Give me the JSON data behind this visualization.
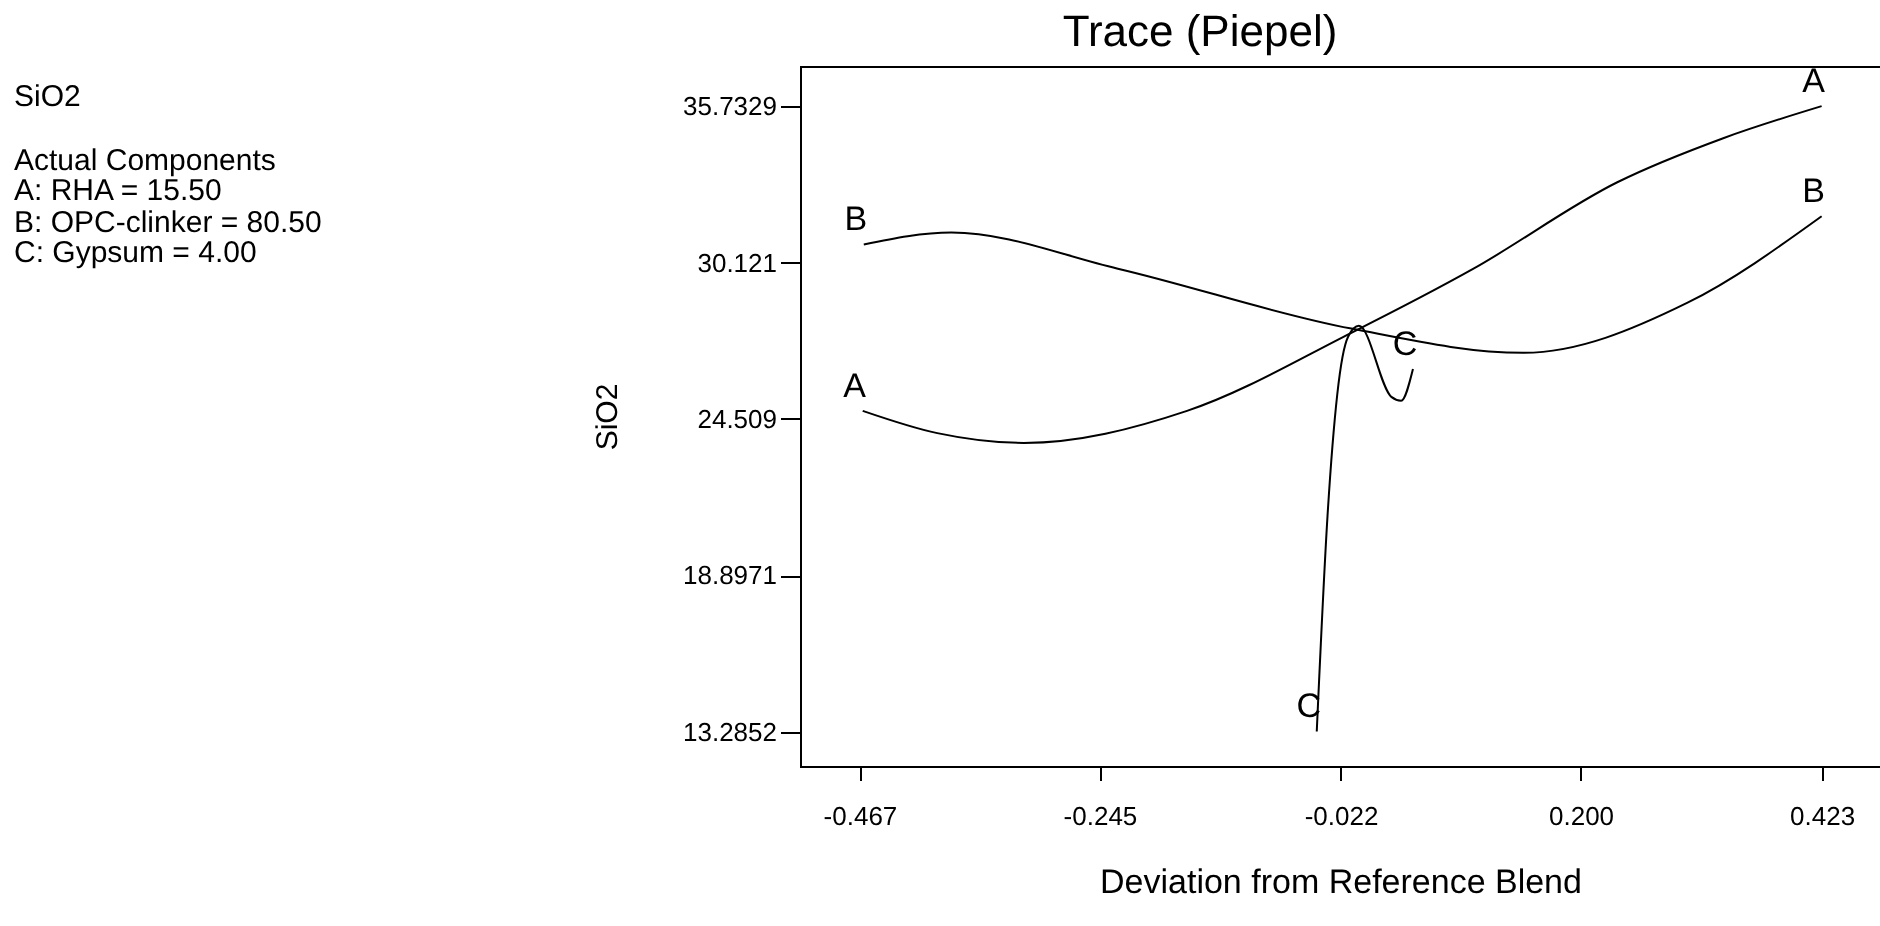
{
  "chart_data": {
    "type": "line",
    "title": "Trace (Piepel)",
    "xlabel": "Deviation from Reference Blend",
    "ylabel": "SiO2",
    "annotations": [
      "SiO2",
      "Actual Components",
      "A: RHA = 15.50",
      "B: OPC-clinker = 80.50",
      "C: Gypsum = 4.00"
    ],
    "xlim": [
      -0.522,
      0.477
    ],
    "ylim": [
      12.06,
      37.17
    ],
    "xticks": [
      -0.467,
      -0.245,
      {
        "value": -0.022,
        "label": "-0.022"
      },
      {
        "value": 0.2,
        "label": "0.200"
      },
      0.423
    ],
    "yticks": [
      13.2852,
      18.8971,
      24.509,
      30.121,
      35.7329
    ],
    "grid": false,
    "legend": false,
    "marker": "none",
    "line_style": "solid",
    "series": [
      {
        "name": "A",
        "color": "#000000",
        "x": [
          -0.464,
          -0.395,
          -0.315,
          -0.164,
          -0.012,
          0.101,
          0.234,
          0.332,
          0.423
        ],
        "values": [
          24.8,
          24.0,
          23.65,
          24.8,
          27.6,
          29.9,
          33.0,
          34.58,
          35.73
        ]
      },
      {
        "name": "B",
        "color": "#000000",
        "x": [
          -0.463,
          -0.382,
          -0.228,
          -0.012,
          0.147,
          0.299,
          0.423
        ],
        "values": [
          30.77,
          31.2,
          29.9,
          27.75,
          26.88,
          28.68,
          31.78
        ]
      },
      {
        "name": "C",
        "color": "#000000",
        "x": [
          -0.044,
          -0.034,
          -0.025,
          -0.015,
          -0.005,
          0.025,
          0.034,
          0.045
        ],
        "values": [
          13.3,
          21.06,
          25.4,
          27.46,
          27.85,
          25.3,
          25.16,
          26.3
        ]
      }
    ]
  }
}
